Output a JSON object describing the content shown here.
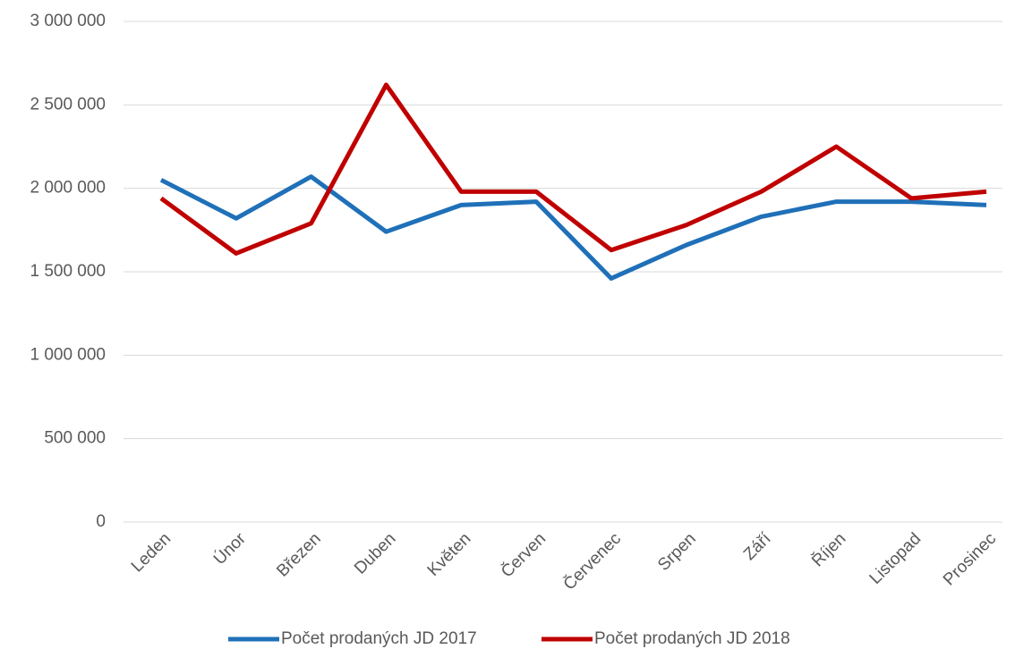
{
  "chart_data": {
    "type": "line",
    "categories": [
      "Leden",
      "Únor",
      "Březen",
      "Duben",
      "Květen",
      "Červen",
      "Červenec",
      "Srpen",
      "Září",
      "Říjen",
      "Listopad",
      "Prosinec"
    ],
    "series": [
      {
        "name": "Počet prodaných JD 2017",
        "color": "#1f70b8",
        "values": [
          2050000,
          1820000,
          2070000,
          1740000,
          1900000,
          1920000,
          1460000,
          1660000,
          1830000,
          1920000,
          1920000,
          1900000
        ]
      },
      {
        "name": "Počet prodaných JD 2018",
        "color": "#c00000",
        "values": [
          1940000,
          1610000,
          1790000,
          2620000,
          1980000,
          1980000,
          1630000,
          1780000,
          1980000,
          2250000,
          1940000,
          1980000
        ]
      }
    ],
    "ylim": [
      0,
      3000000
    ],
    "yticks": [
      0,
      {
        "value": 500000,
        "label": "500 000"
      },
      {
        "value": 1000000,
        "label": "1 000 000"
      },
      {
        "value": 1500000,
        "label": "1 500 000"
      },
      {
        "value": 2000000,
        "label": "2 000 000"
      },
      {
        "value": 2500000,
        "label": "2 500 000"
      },
      {
        "value": 3000000,
        "label": "3 000 000"
      }
    ],
    "grid": true,
    "legend": "bottom"
  }
}
